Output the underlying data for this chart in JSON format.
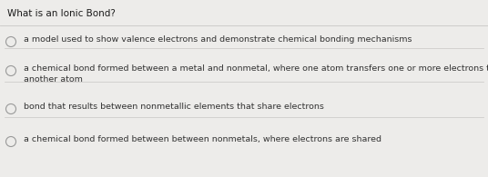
{
  "title": "What is an Ionic Bond?",
  "options": [
    "a model used to show valence electrons and demonstrate chemical bonding mechanisms",
    "a chemical bond formed between a metal and nonmetal, where one atom transfers one or more electrons to\nanother atom",
    "bond that results between nonmetallic elements that share electrons",
    "a chemical bond formed between between nonmetals, where electrons are shared"
  ],
  "bg_color": "#edecea",
  "title_color": "#1a1a1a",
  "option_color": "#333333",
  "circle_color": "#999999",
  "title_fontsize": 7.5,
  "option_fontsize": 6.8,
  "divider_color": "#c8c6c4"
}
